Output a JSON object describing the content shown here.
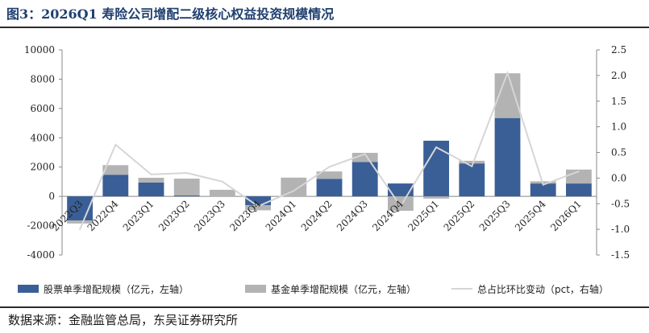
{
  "title": "图3：2026Q1 寿险公司增配二级核心权益投资规模情况",
  "source": "数据来源：金融监管总局，东吴证券研究所",
  "chart_data": {
    "type": "bar",
    "stacked": true,
    "categories": [
      "2022Q3",
      "2022Q4",
      "2023Q1",
      "2023Q2",
      "2023Q3",
      "2023Q4",
      "2024Q1",
      "2024Q2",
      "2024Q3",
      "2024Q4",
      "2025Q1",
      "2025Q2",
      "2025Q3",
      "2025Q4",
      "2026Q1"
    ],
    "series": [
      {
        "name": "股票单季增配规模（亿元，左轴）",
        "type": "bar",
        "axis": "left",
        "color": "#3a5f97",
        "values": [
          -1650,
          1480,
          950,
          60,
          0,
          -600,
          0,
          1200,
          2350,
          880,
          3800,
          2250,
          5350,
          880,
          880
        ]
      },
      {
        "name": "基金单季增配规模（亿元，左轴）",
        "type": "bar",
        "axis": "left",
        "color": "#b3b3b3",
        "values": [
          -200,
          650,
          320,
          1150,
          450,
          -350,
          1280,
          500,
          620,
          -980,
          -150,
          180,
          3050,
          150,
          950
        ]
      },
      {
        "name": "总占比环比变动（pct，右轴）",
        "type": "line",
        "axis": "right",
        "color": "#d6d6d6",
        "values": [
          -1.0,
          0.65,
          0.07,
          0.1,
          -0.07,
          -0.55,
          -0.25,
          0.22,
          0.47,
          -0.55,
          0.6,
          0.23,
          2.05,
          -0.13,
          0.13
        ]
      }
    ],
    "y_left": {
      "min": -4000,
      "max": 10000,
      "ticks": [
        -4000,
        -2000,
        0,
        2000,
        4000,
        6000,
        8000,
        10000
      ]
    },
    "y_right": {
      "min": -1.5,
      "max": 2.5,
      "ticks": [
        "-1.5",
        "-1.0",
        "-0.5",
        "0.0",
        "0.5",
        "1.0",
        "1.5",
        "2.0",
        "2.5"
      ]
    },
    "legend_position": "bottom",
    "grid": false
  }
}
